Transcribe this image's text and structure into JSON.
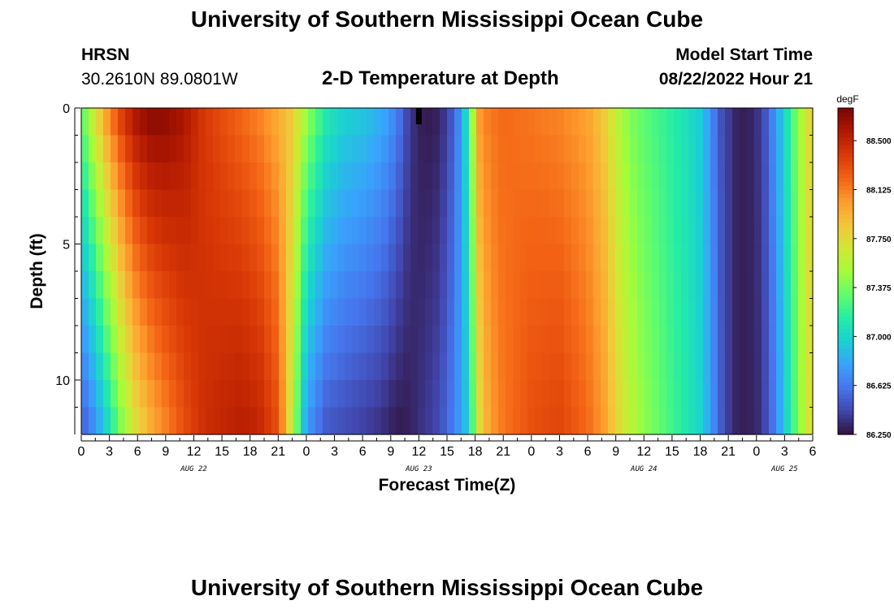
{
  "header": {
    "title": "University of Southern Mississippi Ocean Cube",
    "station": "HRSN",
    "coordinates": "30.2610N  89.0801W",
    "plot_title": "2-D Temperature at Depth",
    "model_start_label": "Model Start Time",
    "model_start_value": "08/22/2022 Hour 21"
  },
  "footer": {
    "title": "University of Southern Mississippi Ocean Cube"
  },
  "chart_data": {
    "type": "heatmap",
    "xlabel": "Forecast Time(Z)",
    "ylabel": "Depth (ft)",
    "x_range_hours": [
      0,
      78
    ],
    "ylim": [
      0,
      12
    ],
    "y_inverted": true,
    "x_tick_labels": [
      "0",
      "3",
      "6",
      "9",
      "12",
      "15",
      "18",
      "21",
      "0",
      "3",
      "6",
      "9",
      "12",
      "15",
      "18",
      "21",
      "0",
      "3",
      "6",
      "9",
      "12",
      "15",
      "18",
      "21",
      "0",
      "3",
      "6"
    ],
    "y_tick_labels": [
      "0",
      "5",
      "10"
    ],
    "y_tick_values": [
      0,
      5,
      10
    ],
    "date_labels": [
      {
        "label": "AUG 22",
        "hour": 12
      },
      {
        "label": "AUG 23",
        "hour": 36
      },
      {
        "label": "AUG 24",
        "hour": 60
      },
      {
        "label": "AUG 25",
        "hour": 75
      }
    ],
    "colorbar": {
      "unit": "degF",
      "min": 86.25,
      "max": 88.75,
      "tick_labels": [
        "88.500",
        "88.125",
        "87.750",
        "87.375",
        "87.000",
        "86.625",
        "86.250"
      ],
      "tick_values": [
        88.5,
        88.125,
        87.75,
        87.375,
        87.0,
        86.625,
        86.25
      ],
      "colors": [
        "#30123b",
        "#4145ab",
        "#4675ed",
        "#39a2fc",
        "#1bcfd4",
        "#24eca6",
        "#61fc6c",
        "#a4fc3b",
        "#d1e834",
        "#f3c63a",
        "#fe9b2d",
        "#f36315",
        "#d93806",
        "#b11901",
        "#7a0402"
      ]
    },
    "surface_profile": {
      "hours": [
        0,
        1.5,
        3,
        4.5,
        6,
        7.5,
        9,
        11,
        13,
        15,
        17,
        19,
        21,
        22.5,
        24,
        26,
        28,
        30,
        32,
        33,
        34,
        35,
        36,
        37,
        38,
        39,
        40,
        41,
        42,
        42.5,
        43.5,
        45,
        48,
        51,
        54,
        56,
        57,
        58.5,
        60,
        62,
        64,
        66,
        67,
        68,
        69,
        70,
        71,
        72,
        73,
        74,
        75,
        76,
        77,
        78
      ],
      "values_degF": [
        87.3,
        87.75,
        88.15,
        88.45,
        88.65,
        88.72,
        88.7,
        88.6,
        88.4,
        88.3,
        88.2,
        88.1,
        87.95,
        87.85,
        87.5,
        87.15,
        87.0,
        86.95,
        86.85,
        86.75,
        86.6,
        86.4,
        86.3,
        86.28,
        86.3,
        86.4,
        86.6,
        87.0,
        87.7,
        88.05,
        88.15,
        88.2,
        88.15,
        88.1,
        88.0,
        87.8,
        87.6,
        87.4,
        87.3,
        87.2,
        87.1,
        86.95,
        86.75,
        86.5,
        86.4,
        86.3,
        86.3,
        86.35,
        86.5,
        86.75,
        87.0,
        87.3,
        87.6,
        87.85
      ]
    },
    "bottom_profile": {
      "hours": [
        0,
        1.5,
        3,
        4.5,
        6,
        7.5,
        9,
        11,
        13,
        15,
        17,
        19,
        21,
        22.5,
        24,
        26,
        28,
        30,
        32,
        33,
        34,
        35,
        36,
        37,
        38,
        39,
        40,
        41,
        42,
        42.5,
        43.5,
        45,
        48,
        51,
        54,
        56,
        57,
        58.5,
        60,
        62,
        64,
        66,
        67,
        68,
        69,
        70,
        71,
        72,
        73,
        74,
        75,
        76,
        77,
        78
      ],
      "values_degF": [
        86.5,
        86.7,
        87.05,
        87.45,
        87.75,
        87.95,
        88.1,
        88.3,
        88.45,
        88.5,
        88.55,
        88.5,
        88.3,
        87.6,
        86.75,
        86.5,
        86.45,
        86.4,
        86.35,
        86.3,
        86.28,
        86.3,
        86.35,
        86.4,
        86.45,
        86.55,
        86.7,
        86.9,
        87.4,
        87.75,
        88.0,
        88.15,
        88.3,
        88.35,
        88.2,
        88.0,
        87.8,
        87.6,
        87.45,
        87.3,
        87.15,
        87.0,
        86.8,
        86.55,
        86.4,
        86.3,
        86.3,
        86.32,
        86.45,
        86.65,
        86.95,
        87.25,
        87.55,
        87.8
      ]
    },
    "marker": {
      "hour": 36,
      "depth_from": 0,
      "depth_to": 0.6
    }
  }
}
